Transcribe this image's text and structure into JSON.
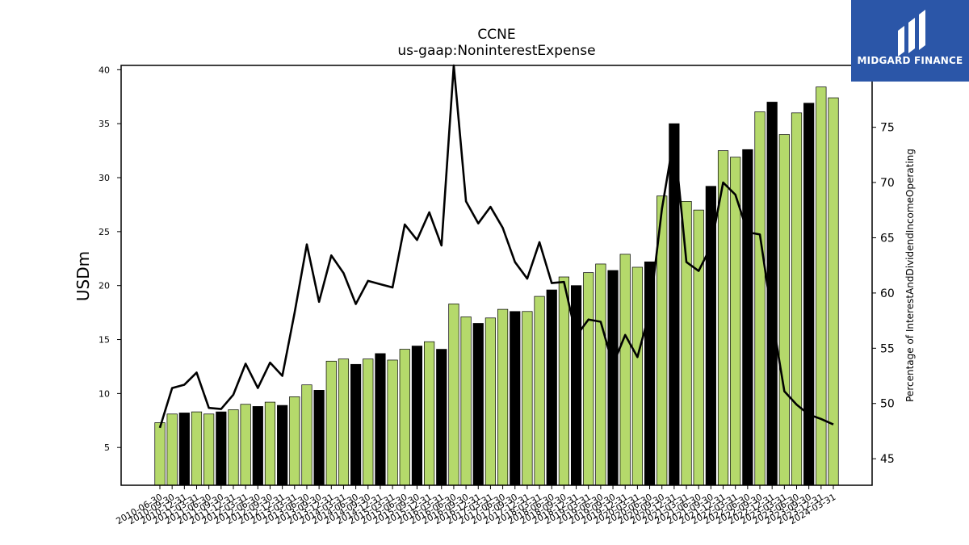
{
  "chart_data": {
    "type": "bar",
    "title": "CCNE",
    "subtitle": "us-gaap:NoninterestExpense",
    "ylabel": "USDm",
    "y2label": "Percentage of InterestAndDividendIncomeOperating",
    "ylim": [
      1.5,
      40.4
    ],
    "y2lim": [
      42.6,
      80.6
    ],
    "yticks": [
      5,
      10,
      15,
      20,
      25,
      30,
      35,
      40
    ],
    "y2ticks": [
      45,
      50,
      55,
      60,
      65,
      70,
      75
    ],
    "categories": [
      "2010-06-30",
      "2010-09-30",
      "2010-12-31",
      "2011-03-31",
      "2011-06-30",
      "2011-09-30",
      "2011-12-31",
      "2012-03-31",
      "2012-06-30",
      "2012-09-30",
      "2012-12-31",
      "2013-03-31",
      "2013-06-30",
      "2013-09-30",
      "2013-12-31",
      "2014-03-31",
      "2014-06-30",
      "2014-09-30",
      "2014-12-31",
      "2015-03-31",
      "2015-06-30",
      "2015-09-30",
      "2015-12-31",
      "2016-03-31",
      "2016-06-30",
      "2016-09-30",
      "2016-12-31",
      "2017-03-31",
      "2017-06-30",
      "2017-09-30",
      "2017-12-31",
      "2018-03-31",
      "2018-06-30",
      "2018-09-30",
      "2018-12-31",
      "2019-03-31",
      "2019-06-30",
      "2019-09-30",
      "2019-12-31",
      "2020-03-31",
      "2020-06-30",
      "2020-09-30",
      "2020-12-31",
      "2021-03-31",
      "2021-06-30",
      "2021-09-30",
      "2021-12-31",
      "2022-03-31",
      "2022-06-30",
      "2022-09-30",
      "2022-12-31",
      "2023-03-31",
      "2023-06-30",
      "2023-09-30",
      "2023-12-31",
      "2024-03-31"
    ],
    "series": [
      {
        "type": "bar",
        "values": [
          7.3,
          8.1,
          8.2,
          8.3,
          8.1,
          8.3,
          8.5,
          9.0,
          8.8,
          9.2,
          8.9,
          9.7,
          10.8,
          10.3,
          13.0,
          13.2,
          12.7,
          13.2,
          13.7,
          13.1,
          14.1,
          14.4,
          14.8,
          14.1,
          18.3,
          17.1,
          16.5,
          17.0,
          17.8,
          17.6,
          17.6,
          19.0,
          19.6,
          20.8,
          20.0,
          21.2,
          22.0,
          21.4,
          22.9,
          21.7,
          22.2,
          28.3,
          35.0,
          27.8,
          27.0,
          29.2,
          32.5,
          31.9,
          32.6,
          36.1,
          37.0,
          34.0,
          36.0,
          36.9,
          38.4,
          37.4
        ],
        "highlight": [
          false,
          false,
          true,
          false,
          false,
          true,
          false,
          false,
          true,
          false,
          true,
          false,
          false,
          true,
          false,
          false,
          true,
          false,
          true,
          false,
          false,
          true,
          false,
          true,
          false,
          false,
          true,
          false,
          false,
          true,
          false,
          false,
          true,
          false,
          true,
          false,
          false,
          true,
          false,
          false,
          true,
          false,
          true,
          false,
          false,
          true,
          false,
          false,
          true,
          false,
          true,
          false,
          false,
          true,
          false,
          false
        ],
        "color": "#b5d96b",
        "highlight_color": "#000000"
      },
      {
        "type": "line",
        "axis": "right",
        "values": [
          47.8,
          51.4,
          51.7,
          52.8,
          49.6,
          49.5,
          50.8,
          53.6,
          51.4,
          53.7,
          52.5,
          58.2,
          64.4,
          59.2,
          63.4,
          61.8,
          59.0,
          61.1,
          60.8,
          60.5,
          66.2,
          64.8,
          67.3,
          64.3,
          80.6,
          68.3,
          66.3,
          67.8,
          65.9,
          62.8,
          61.3,
          64.6,
          60.9,
          61.0,
          56.1,
          57.6,
          57.4,
          53.5,
          56.2,
          54.2,
          58.3,
          67.6,
          74.2,
          62.8,
          62.0,
          64.2,
          70.0,
          68.9,
          65.5,
          65.3,
          57.8,
          51.1,
          49.9,
          49.0,
          48.6,
          48.1
        ],
        "color": "#000000"
      }
    ]
  },
  "logo": {
    "text": "MIDGARD FINANCE",
    "color": "#2b56a8"
  }
}
